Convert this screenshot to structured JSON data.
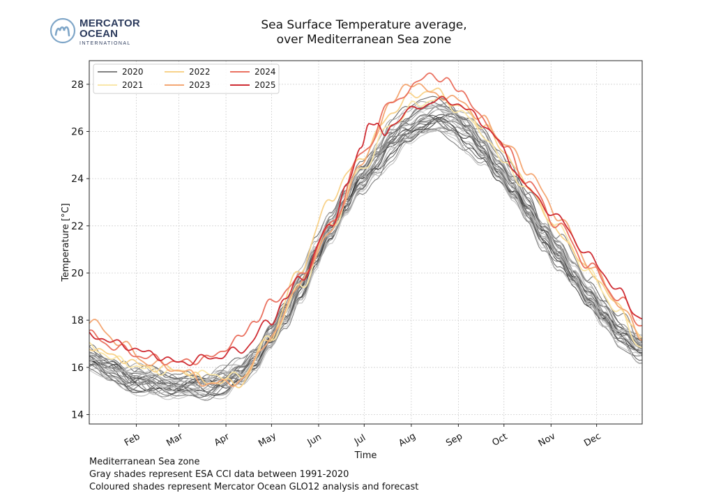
{
  "logo": {
    "line1": "MERCATOR",
    "line2": "OCEAN",
    "line3": "INTERNATIONAL",
    "color": "#2b3a5c",
    "icon": "mercator-m-icon",
    "icon_color": "#7fa6c8"
  },
  "title": {
    "line1": "Sea Surface Temperature average,",
    "line2": "over Mediterranean Sea zone"
  },
  "footer": {
    "line1": "Mediterranean Sea zone",
    "line2": "Gray shades represent ESA CCI data between 1991-2020",
    "line3": "Coloured shades represent Mercator Ocean GLO12 analysis and forecast"
  },
  "chart_data": {
    "type": "line",
    "xlabel": "Time",
    "ylabel": "Temperature [°C]",
    "xlim_day_of_year": [
      1,
      365
    ],
    "ylim": [
      13.6,
      29.0
    ],
    "yticks": [
      14,
      16,
      18,
      20,
      22,
      24,
      26,
      28
    ],
    "xticks": [
      {
        "label": "Feb",
        "day": 32
      },
      {
        "label": "Mar",
        "day": 60
      },
      {
        "label": "Apr",
        "day": 91
      },
      {
        "label": "May",
        "day": 121
      },
      {
        "label": "Jun",
        "day": 152
      },
      {
        "label": "Jul",
        "day": 182
      },
      {
        "label": "Aug",
        "day": 213
      },
      {
        "label": "Sep",
        "day": 244
      },
      {
        "label": "Oct",
        "day": 274
      },
      {
        "label": "Nov",
        "day": 305
      },
      {
        "label": "Dec",
        "day": 335
      }
    ],
    "grid": true,
    "legend_position": "top-left",
    "climatology_day": [
      1,
      15,
      30,
      45,
      60,
      75,
      90,
      100,
      110,
      120,
      130,
      140,
      150,
      160,
      170,
      180,
      190,
      200,
      210,
      220,
      230,
      240,
      250,
      260,
      270,
      280,
      290,
      300,
      310,
      320,
      330,
      340,
      350,
      365
    ],
    "climatology_mean": [
      16.4,
      15.9,
      15.5,
      15.3,
      15.2,
      15.2,
      15.4,
      15.7,
      16.3,
      17.2,
      18.3,
      19.5,
      20.7,
      21.9,
      23.0,
      24.0,
      24.9,
      25.6,
      26.1,
      26.5,
      26.6,
      26.5,
      26.0,
      25.3,
      24.5,
      23.6,
      22.7,
      21.7,
      20.8,
      19.9,
      19.0,
      18.2,
      17.5,
      16.8
    ],
    "climatology_years_count": 30,
    "series": [
      {
        "name": "2020",
        "color": "#808080",
        "x": [
          1,
          20,
          40,
          60,
          80,
          100,
          120,
          140,
          160,
          180,
          200,
          215,
          230,
          245,
          260,
          275,
          290,
          310,
          330,
          350,
          365
        ],
        "y": [
          16.8,
          16.1,
          15.8,
          15.7,
          15.6,
          15.9,
          17.6,
          19.7,
          21.9,
          24.0,
          25.9,
          26.8,
          27.3,
          26.7,
          25.9,
          24.7,
          23.4,
          21.6,
          19.8,
          18.3,
          17.1
        ]
      },
      {
        "name": "2021",
        "color": "#fae7a9",
        "x": [
          1,
          20,
          40,
          60,
          80,
          100,
          120,
          140,
          160,
          180,
          200,
          215,
          230,
          245,
          260,
          275,
          290,
          310,
          330,
          350,
          365
        ],
        "y": [
          16.9,
          16.3,
          15.9,
          15.8,
          15.7,
          15.6,
          17.2,
          19.4,
          22.0,
          24.4,
          26.3,
          27.1,
          27.4,
          26.9,
          25.9,
          24.6,
          23.5,
          21.9,
          20.0,
          18.3,
          16.8
        ]
      },
      {
        "name": "2022",
        "color": "#f8d28a",
        "x": [
          1,
          20,
          40,
          60,
          80,
          100,
          120,
          140,
          160,
          180,
          200,
          215,
          230,
          245,
          260,
          275,
          290,
          310,
          330,
          350,
          365
        ],
        "y": [
          16.9,
          16.4,
          16.0,
          15.9,
          15.4,
          15.3,
          17.3,
          20.2,
          23.2,
          24.9,
          26.8,
          27.6,
          27.7,
          27.0,
          26.3,
          25.1,
          23.6,
          21.7,
          20.1,
          18.6,
          17.2
        ]
      },
      {
        "name": "2023",
        "color": "#f4a774",
        "x": [
          1,
          20,
          40,
          60,
          80,
          100,
          120,
          140,
          160,
          180,
          200,
          212,
          228,
          245,
          260,
          275,
          290,
          310,
          330,
          350,
          365
        ],
        "y": [
          18.0,
          17.1,
          16.2,
          15.9,
          15.3,
          15.4,
          17.2,
          19.6,
          21.8,
          24.6,
          27.2,
          28.1,
          27.6,
          27.3,
          26.5,
          25.5,
          24.3,
          22.4,
          20.4,
          18.7,
          17.2
        ]
      },
      {
        "name": "2024",
        "color": "#ea7160",
        "x": [
          1,
          20,
          40,
          60,
          80,
          100,
          110,
          120,
          140,
          160,
          180,
          200,
          215,
          225,
          235,
          245,
          260,
          275,
          290,
          310,
          330,
          350,
          365
        ],
        "y": [
          17.4,
          16.8,
          16.4,
          16.2,
          16.4,
          17.2,
          18.0,
          18.7,
          19.8,
          22.0,
          25.0,
          27.2,
          27.9,
          28.5,
          28.1,
          27.8,
          26.5,
          25.3,
          23.8,
          22.0,
          20.3,
          18.9,
          17.8
        ]
      },
      {
        "name": "2025",
        "color": "#cf2c33",
        "x": [
          1,
          20,
          40,
          60,
          80,
          100,
          120,
          130,
          140,
          160,
          170,
          180,
          185,
          190,
          195,
          200,
          210,
          220,
          230,
          240,
          250,
          260,
          270,
          280,
          290,
          310,
          330,
          350,
          365
        ],
        "y": [
          17.4,
          17.0,
          16.6,
          16.2,
          16.4,
          16.7,
          17.9,
          18.9,
          19.8,
          22.0,
          23.6,
          25.3,
          26.5,
          26.2,
          25.8,
          26.3,
          26.8,
          27.1,
          27.3,
          27.3,
          26.9,
          26.4,
          25.6,
          24.5,
          23.5,
          22.3,
          20.7,
          19.2,
          18.0
        ]
      }
    ]
  }
}
